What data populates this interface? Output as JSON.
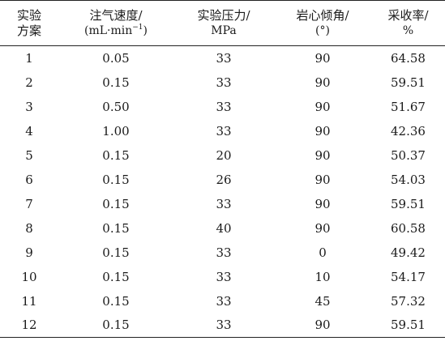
{
  "table": {
    "headers": {
      "scheme": [
        "实验",
        "方案"
      ],
      "rate": [
        "注气速度/",
        "(mL·min",
        "−1",
        ")"
      ],
      "pressure": [
        "实验压力/",
        "MPa"
      ],
      "angle": [
        "岩心倾角/",
        "(°)"
      ],
      "recovery": [
        "采收率/",
        "%"
      ]
    },
    "rows": [
      [
        "1",
        "0.05",
        "33",
        "90",
        "64.58"
      ],
      [
        "2",
        "0.15",
        "33",
        "90",
        "59.51"
      ],
      [
        "3",
        "0.50",
        "33",
        "90",
        "51.67"
      ],
      [
        "4",
        "1.00",
        "33",
        "90",
        "42.36"
      ],
      [
        "5",
        "0.15",
        "20",
        "90",
        "50.37"
      ],
      [
        "6",
        "0.15",
        "26",
        "90",
        "54.03"
      ],
      [
        "7",
        "0.15",
        "33",
        "90",
        "59.51"
      ],
      [
        "8",
        "0.15",
        "40",
        "90",
        "60.58"
      ],
      [
        "9",
        "0.15",
        "33",
        "0",
        "49.42"
      ],
      [
        "10",
        "0.15",
        "33",
        "10",
        "54.17"
      ],
      [
        "11",
        "0.15",
        "33",
        "45",
        "57.32"
      ],
      [
        "12",
        "0.15",
        "33",
        "90",
        "59.51"
      ]
    ]
  }
}
